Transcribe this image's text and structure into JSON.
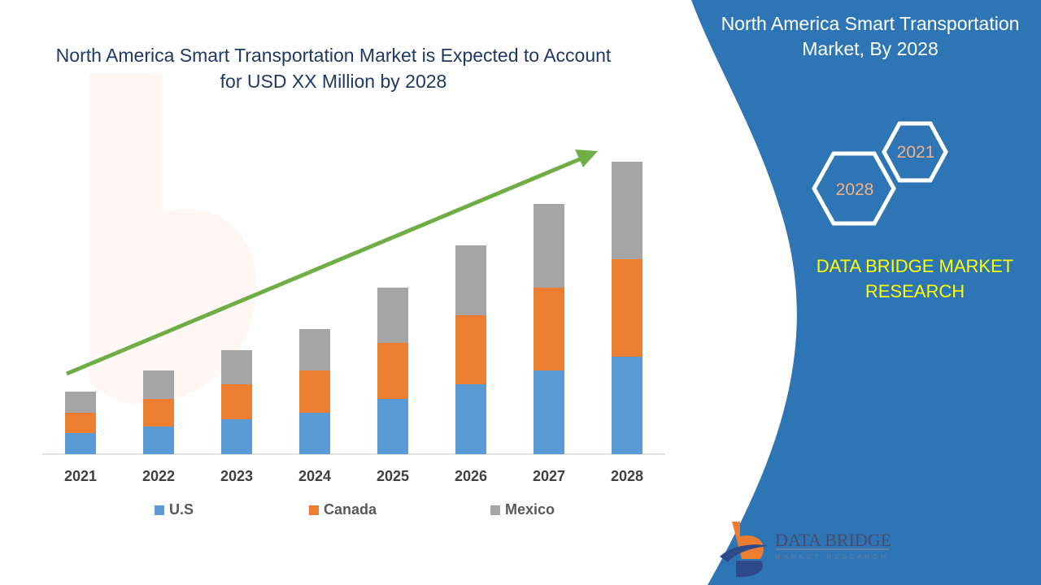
{
  "title": "North America Smart Transportation Market is Expected to Account for USD XX Million by 2028",
  "side_panel": {
    "title": "North America Smart Transportation Market, By 2028",
    "hex_years": [
      "2021",
      "2028"
    ],
    "brand": "DATA BRIDGE MARKET RESEARCH",
    "logo_text": "DATA BRIDGE",
    "logo_subtext": "MARKET RESEARCH",
    "panel_color": "#2e75b6"
  },
  "chart_data": {
    "type": "bar",
    "stacked": true,
    "categories": [
      "2021",
      "2022",
      "2023",
      "2024",
      "2025",
      "2026",
      "2027",
      "2028"
    ],
    "series": [
      {
        "name": "U.S",
        "color": "#5b9bd5",
        "values": [
          26,
          34,
          43,
          51,
          68,
          86,
          103,
          120
        ]
      },
      {
        "name": "Canada",
        "color": "#ed7d31",
        "values": [
          25,
          34,
          43,
          52,
          69,
          85,
          102,
          120
        ]
      },
      {
        "name": "Mexico",
        "color": "#a5a5a5",
        "values": [
          26,
          35,
          42,
          51,
          68,
          86,
          103,
          120
        ]
      }
    ],
    "ylim": [
      0,
      360
    ],
    "y_axis_shown": false,
    "grid": false,
    "legend": "bottom",
    "trend_arrow_color": "#70ad47"
  }
}
